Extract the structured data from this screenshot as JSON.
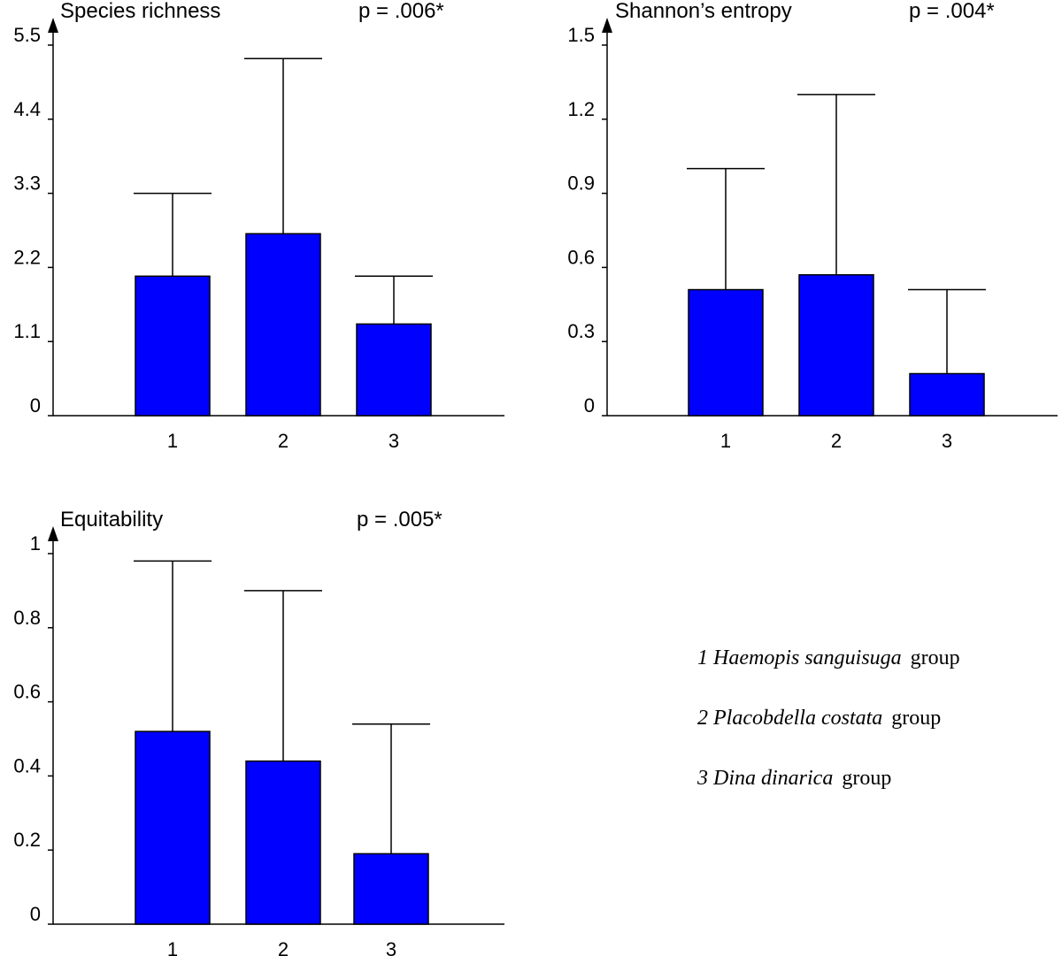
{
  "chart_data": [
    {
      "type": "bar",
      "title": "Species richness",
      "annotation": "p = .006*",
      "categories": [
        "1",
        "2",
        "3"
      ],
      "values": [
        2.07,
        2.7,
        1.36
      ],
      "error_upper": [
        3.3,
        5.3,
        2.07
      ],
      "yticks": [
        0,
        1.1,
        2.2,
        3.3,
        4.4,
        5.5
      ],
      "ytick_labels": [
        "0",
        "1.1",
        "2.2",
        "3.3",
        "4.4",
        "5.5"
      ],
      "ylim": [
        0,
        5.5
      ],
      "xlabel": "",
      "ylabel": "",
      "bar_color": "#0000ff"
    },
    {
      "type": "bar",
      "title": "Shannon’s entropy",
      "annotation": "p = .004*",
      "categories": [
        "1",
        "2",
        "3"
      ],
      "values": [
        0.51,
        0.57,
        0.17
      ],
      "error_upper": [
        1.0,
        1.3,
        0.51
      ],
      "yticks": [
        0,
        0.3,
        0.6,
        0.9,
        1.2,
        1.5
      ],
      "ytick_labels": [
        "0",
        "0.3",
        "0.6",
        "0.9",
        "1.2",
        "1.5"
      ],
      "ylim": [
        0,
        1.5
      ],
      "xlabel": "",
      "ylabel": "",
      "bar_color": "#0000ff"
    },
    {
      "type": "bar",
      "title": "Equitability",
      "annotation": "p = .005*",
      "categories": [
        "1",
        "2",
        "3"
      ],
      "values": [
        0.52,
        0.44,
        0.19
      ],
      "error_upper": [
        0.98,
        0.9,
        0.54
      ],
      "yticks": [
        0,
        0.2,
        0.4,
        0.6,
        0.8,
        1
      ],
      "ytick_labels": [
        "0",
        "0.2",
        "0.4",
        "0.6",
        "0.8",
        "1"
      ],
      "ylim": [
        0,
        1
      ],
      "xlabel": "",
      "ylabel": "",
      "bar_color": "#0000ff"
    }
  ],
  "legend": [
    {
      "num": "1",
      "species": "Haemopis sanguisuga",
      "word": "group"
    },
    {
      "num": "2",
      "species": "Placobdella costata",
      "word": "group"
    },
    {
      "num": "3",
      "species": "Dina dinarica",
      "word": "group"
    }
  ]
}
